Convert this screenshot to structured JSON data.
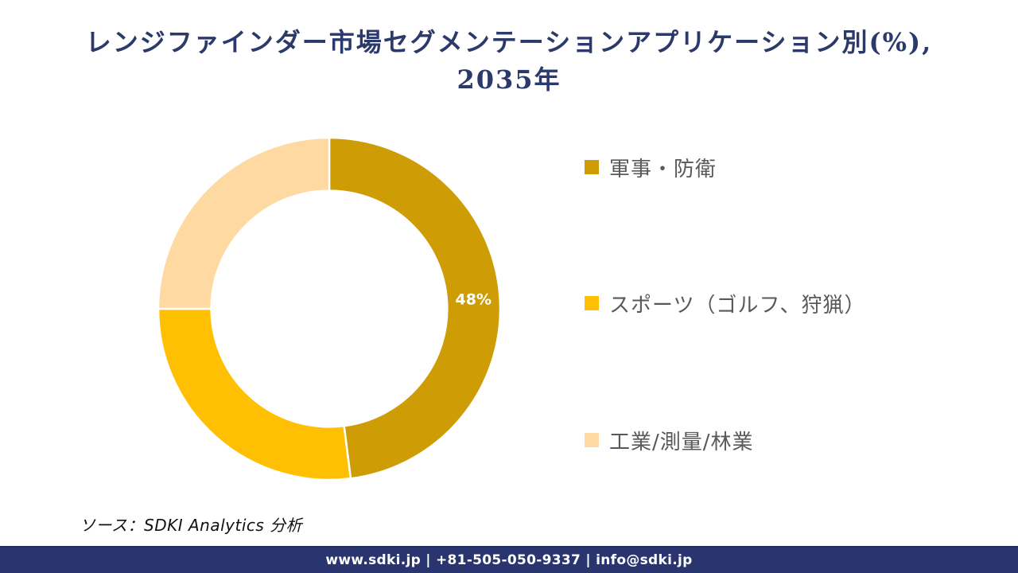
{
  "title": {
    "line1": "レンジファインダー市場セグメンテーションアプリケーション別(%),",
    "line2": "2035年",
    "color": "#2B3A6B"
  },
  "chart_data": {
    "type": "pie",
    "subtype": "donut",
    "title": "レンジファインダー市場セグメンテーションアプリケーション別(%), 2035年",
    "categories": [
      "軍事・防衛",
      "スポーツ（ゴルフ、狩猟）",
      "工業/測量/林業"
    ],
    "values": [
      48,
      27,
      25
    ],
    "colors": [
      "#CE9D05",
      "#FFC003",
      "#FFD9A2"
    ],
    "data_labels": [
      "48%",
      "",
      ""
    ],
    "data_label_color": "#FFFFFF",
    "separator_color": "#FFFFFF",
    "start_angle_deg": 0,
    "direction": "clockwise",
    "donut_hole_ratio": 0.69,
    "legend_position": "right",
    "legend_text_color": "#595959"
  },
  "source_note": "ソース：SDKI Analytics  分析",
  "footer": {
    "text": "www.sdki.jp | +81-505-050-9337 | info@sdki.jp",
    "background": "#2A3570"
  }
}
